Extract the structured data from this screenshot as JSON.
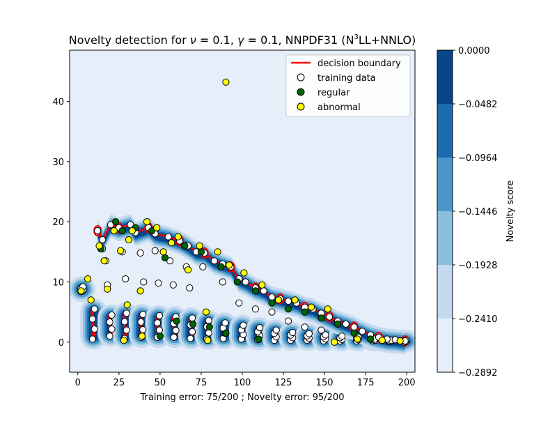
{
  "chart_data": {
    "type": "scatter",
    "title": {
      "prefix": "Novelty detection for ",
      "nu_symbol": "ν",
      "nu_value": " = 0.1, ",
      "gamma_symbol": "γ",
      "gamma_value": " = 0.1, NNPDF31 (N",
      "superscript": "3",
      "suffix": "LL+NNLO)"
    },
    "xlabel": "Training error: 75/200 ; Novelty error: 95/200",
    "ylabel": "",
    "xlim": [
      -5,
      205
    ],
    "ylim": [
      -5,
      48.5
    ],
    "xticks": [
      0,
      25,
      50,
      75,
      100,
      125,
      150,
      175,
      200
    ],
    "yticks": [
      0,
      10,
      20,
      30,
      40
    ],
    "grid": false,
    "legend_placement": "top-right",
    "legend": [
      "decision boundary",
      "training data",
      "regular",
      "abnormal"
    ],
    "colors": {
      "decision_boundary": "#ff0000",
      "training_data_fill": "#ffffff",
      "regular_fill": "#006400",
      "abnormal_fill": "#ffff00",
      "marker_edge": "#000000",
      "background_level": "#e6eef9"
    },
    "colorbar": {
      "label": "Novelty score",
      "ticks": [
        "0.0000",
        "−0.0482",
        "−0.0964",
        "−0.1446",
        "−0.1928",
        "−0.2410",
        "−0.2892"
      ],
      "levels": [
        "#08468a",
        "#1c6bb0",
        "#4a98c9",
        "#8abfdd",
        "#c5daef",
        "#e6eef9"
      ]
    },
    "clusters": [
      {
        "x": 2.5,
        "top": 9.2,
        "bottom": 8.4
      },
      {
        "x": 9.5,
        "top": 5.5,
        "bottom": 0.5
      },
      {
        "x": 20.0,
        "top": 4.5,
        "bottom": 1.0
      },
      {
        "x": 29.0,
        "top": 4.8,
        "bottom": 0.6
      },
      {
        "x": 39.0,
        "top": 4.6,
        "bottom": 0.8
      },
      {
        "x": 49.0,
        "top": 4.4,
        "bottom": 0.8
      },
      {
        "x": 59.0,
        "top": 4.2,
        "bottom": 0.8
      },
      {
        "x": 69.0,
        "top": 4.0,
        "bottom": 0.6
      },
      {
        "x": 79.0,
        "top": 3.6,
        "bottom": 0.5
      },
      {
        "x": 89.0,
        "top": 3.2,
        "bottom": 0.6
      },
      {
        "x": 100.0,
        "top": 2.8,
        "bottom": 0.5
      },
      {
        "x": 110.0,
        "top": 2.4,
        "bottom": 0.4
      },
      {
        "x": 120.0,
        "top": 2.0,
        "bottom": 0.3
      },
      {
        "x": 130.0,
        "top": 1.6,
        "bottom": 0.3
      },
      {
        "x": 140.0,
        "top": 1.4,
        "bottom": 0.3
      },
      {
        "x": 150.0,
        "top": 1.2,
        "bottom": 0.2
      },
      {
        "x": 160.0,
        "top": 1.0,
        "bottom": 0.2
      },
      {
        "x": 170.0,
        "top": 0.8,
        "bottom": 0.2
      },
      {
        "x": 180.0,
        "top": 0.5,
        "bottom": 0.2
      },
      {
        "x": 190.0,
        "top": 0.3,
        "bottom": 0.1
      },
      {
        "x": 199.0,
        "top": 0.3,
        "bottom": 0.0
      }
    ],
    "upper_band": [
      [
        12,
        18.5
      ],
      [
        15,
        17.0
      ],
      [
        20,
        19.5
      ],
      [
        25,
        19.0
      ],
      [
        32,
        19.5
      ],
      [
        35,
        18.2
      ],
      [
        43,
        19.0
      ],
      [
        47,
        18.0
      ],
      [
        55,
        17.5
      ],
      [
        62,
        16.8
      ],
      [
        67,
        16.0
      ],
      [
        72,
        15.0
      ],
      [
        77,
        14.8
      ],
      [
        83,
        13.5
      ],
      [
        88,
        13.0
      ],
      [
        93,
        12.5
      ],
      [
        98,
        10.5
      ],
      [
        102,
        10.0
      ],
      [
        108,
        9.0
      ],
      [
        113,
        8.5
      ],
      [
        118,
        7.5
      ],
      [
        123,
        7.2
      ],
      [
        128,
        6.8
      ],
      [
        133,
        6.5
      ],
      [
        138,
        5.8
      ],
      [
        143,
        5.5
      ],
      [
        148,
        4.8
      ],
      [
        153,
        4.2
      ],
      [
        158,
        3.5
      ],
      [
        163,
        3.0
      ],
      [
        168,
        2.5
      ],
      [
        173,
        1.8
      ],
      [
        178,
        1.2
      ],
      [
        183,
        0.8
      ],
      [
        188,
        0.5
      ],
      [
        193,
        0.4
      ],
      [
        199,
        0.2
      ]
    ],
    "mid_points": [
      [
        15,
        15.5
      ],
      [
        17,
        13.5
      ],
      [
        18,
        9.5
      ],
      [
        27,
        15.0
      ],
      [
        29,
        10.5
      ],
      [
        38,
        14.8
      ],
      [
        40,
        10.0
      ],
      [
        47,
        15.2
      ],
      [
        49,
        9.8
      ],
      [
        56,
        13.5
      ],
      [
        58,
        9.5
      ],
      [
        66,
        12.5
      ],
      [
        68,
        9.0
      ],
      [
        76,
        12.5
      ],
      [
        88,
        10.0
      ],
      [
        98,
        6.5
      ],
      [
        108,
        5.5
      ],
      [
        118,
        5.0
      ],
      [
        128,
        3.5
      ],
      [
        138,
        2.5
      ],
      [
        148,
        2.0
      ]
    ],
    "regular": [
      [
        14,
        15.5
      ],
      [
        23,
        20.0
      ],
      [
        27,
        18.5
      ],
      [
        35,
        19.0
      ],
      [
        45,
        18.5
      ],
      [
        53,
        14.0
      ],
      [
        65,
        16.0
      ],
      [
        75,
        15.0
      ],
      [
        87,
        12.5
      ],
      [
        97,
        10.0
      ],
      [
        108,
        8.5
      ],
      [
        118,
        6.5
      ],
      [
        128,
        5.5
      ],
      [
        138,
        5.0
      ],
      [
        148,
        4.0
      ],
      [
        158,
        3.0
      ],
      [
        168,
        1.5
      ],
      [
        178,
        0.5
      ],
      [
        50,
        1.0
      ],
      [
        60,
        3.5
      ],
      [
        70,
        3.0
      ],
      [
        80,
        2.5
      ],
      [
        90,
        1.5
      ],
      [
        110,
        0.5
      ]
    ],
    "abnormal": [
      [
        90,
        43.2
      ],
      [
        2,
        8.5
      ],
      [
        6,
        10.5
      ],
      [
        8,
        7.0
      ],
      [
        13,
        16.0
      ],
      [
        16,
        13.5
      ],
      [
        18,
        8.8
      ],
      [
        22,
        18.5
      ],
      [
        26,
        15.2
      ],
      [
        30,
        6.2
      ],
      [
        31,
        17.0
      ],
      [
        33,
        18.5
      ],
      [
        38,
        8.5
      ],
      [
        42,
        20.0
      ],
      [
        48,
        19.0
      ],
      [
        52,
        15.0
      ],
      [
        57,
        16.5
      ],
      [
        61,
        17.5
      ],
      [
        67,
        12.0
      ],
      [
        74,
        16.0
      ],
      [
        78,
        5.0
      ],
      [
        85,
        15.0
      ],
      [
        92,
        12.8
      ],
      [
        101,
        11.5
      ],
      [
        112,
        9.5
      ],
      [
        122,
        7.0
      ],
      [
        132,
        7.0
      ],
      [
        142,
        5.8
      ],
      [
        152,
        5.5
      ],
      [
        156,
        0.0
      ],
      [
        170,
        0.5
      ],
      [
        185,
        0.3
      ],
      [
        196,
        0.2
      ],
      [
        28,
        0.3
      ],
      [
        39,
        1.0
      ],
      [
        79,
        0.3
      ]
    ]
  }
}
